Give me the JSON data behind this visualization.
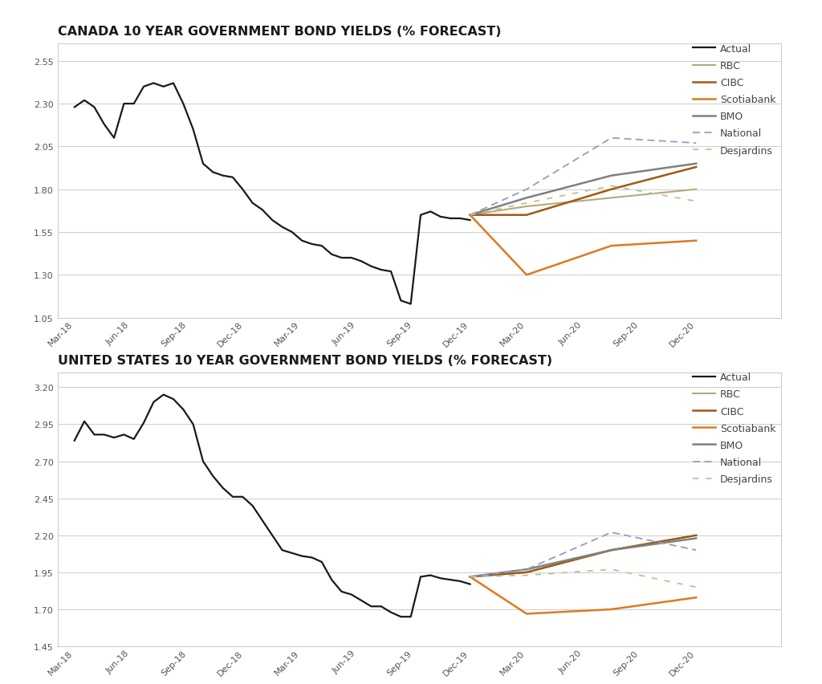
{
  "title1": "CANADA 10 YEAR GOVERNMENT BOND YIELDS (% FORECAST)",
  "title2": "UNITED STATES 10 YEAR GOVERNMENT BOND YIELDS (% FORECAST)",
  "canada": {
    "ylim": [
      1.05,
      2.65
    ],
    "yticks": [
      1.05,
      1.3,
      1.55,
      1.8,
      2.05,
      2.3,
      2.55
    ],
    "actual_y": [
      2.28,
      2.32,
      2.28,
      2.18,
      2.1,
      2.3,
      2.3,
      2.4,
      2.42,
      2.4,
      2.42,
      2.3,
      2.15,
      1.95,
      1.9,
      1.88,
      1.87,
      1.8,
      1.72,
      1.68,
      1.62,
      1.58,
      1.55,
      1.5,
      1.48,
      1.47,
      1.42,
      1.4,
      1.4,
      1.38,
      1.35,
      1.33,
      1.32,
      1.15,
      1.13,
      1.65,
      1.67,
      1.64,
      1.63,
      1.63,
      1.62
    ],
    "actual_x_end": 7.0,
    "RBC": {
      "x": [
        7.0,
        8.0,
        9.5,
        11.0
      ],
      "y": [
        1.65,
        1.7,
        1.75,
        1.8
      ]
    },
    "CIBC": {
      "x": [
        7.0,
        8.0,
        9.5,
        11.0
      ],
      "y": [
        1.65,
        1.65,
        1.8,
        1.93
      ]
    },
    "Scotiabank": {
      "x": [
        7.0,
        8.0,
        9.5,
        11.0
      ],
      "y": [
        1.65,
        1.3,
        1.47,
        1.5
      ]
    },
    "BMO": {
      "x": [
        7.0,
        8.0,
        9.5,
        11.0
      ],
      "y": [
        1.65,
        1.75,
        1.88,
        1.95
      ]
    },
    "National": {
      "x": [
        7.0,
        8.0,
        9.5,
        11.0
      ],
      "y": [
        1.65,
        1.8,
        2.1,
        2.07
      ]
    },
    "Desjardins": {
      "x": [
        7.0,
        8.0,
        9.5,
        11.0
      ],
      "y": [
        1.65,
        1.72,
        1.82,
        1.73
      ]
    }
  },
  "us": {
    "ylim": [
      1.45,
      3.3
    ],
    "yticks": [
      1.45,
      1.7,
      1.95,
      2.2,
      2.45,
      2.7,
      2.95,
      3.2
    ],
    "actual_y": [
      2.84,
      2.97,
      2.88,
      2.88,
      2.86,
      2.88,
      2.85,
      2.96,
      3.1,
      3.15,
      3.12,
      3.05,
      2.95,
      2.7,
      2.6,
      2.52,
      2.46,
      2.46,
      2.4,
      2.3,
      2.2,
      2.1,
      2.08,
      2.06,
      2.05,
      2.02,
      1.9,
      1.82,
      1.8,
      1.76,
      1.72,
      1.72,
      1.68,
      1.65,
      1.65,
      1.92,
      1.93,
      1.91,
      1.9,
      1.89,
      1.87
    ],
    "actual_x_end": 7.0,
    "RBC": {
      "x": [
        7.0,
        8.0,
        9.5,
        11.0
      ],
      "y": [
        1.92,
        1.95,
        2.1,
        2.2
      ]
    },
    "CIBC": {
      "x": [
        7.0,
        8.0,
        9.5,
        11.0
      ],
      "y": [
        1.92,
        1.95,
        2.1,
        2.2
      ]
    },
    "Scotiabank": {
      "x": [
        7.0,
        8.0,
        9.5,
        11.0
      ],
      "y": [
        1.92,
        1.67,
        1.7,
        1.78
      ]
    },
    "BMO": {
      "x": [
        7.0,
        8.0,
        9.5,
        11.0
      ],
      "y": [
        1.92,
        1.97,
        2.1,
        2.18
      ]
    },
    "National": {
      "x": [
        7.0,
        8.0,
        9.5,
        11.0
      ],
      "y": [
        1.92,
        1.97,
        2.22,
        2.1
      ]
    },
    "Desjardins": {
      "x": [
        7.0,
        8.0,
        9.5,
        11.0
      ],
      "y": [
        1.92,
        1.93,
        1.97,
        1.85
      ]
    }
  },
  "xtick_labels": [
    "Mar-18",
    "Jun-18",
    "Sep-18",
    "Dec-18",
    "Mar-19",
    "Jun-19",
    "Sep-19",
    "Dec-19",
    "Mar-20",
    "Jun-20",
    "Sep-20",
    "Dec-20"
  ],
  "colors": {
    "actual": "#1a1a1a",
    "RBC": "#b5a97a",
    "CIBC": "#a05a10",
    "Scotiabank": "#e07820",
    "BMO": "#808080",
    "National": "#9999bb",
    "Desjardins": "#c0c090"
  },
  "xlim": [
    -0.3,
    12.5
  ],
  "xtick_positions": [
    0,
    1,
    2,
    3,
    4,
    5,
    6,
    7,
    8,
    9,
    10,
    11
  ]
}
